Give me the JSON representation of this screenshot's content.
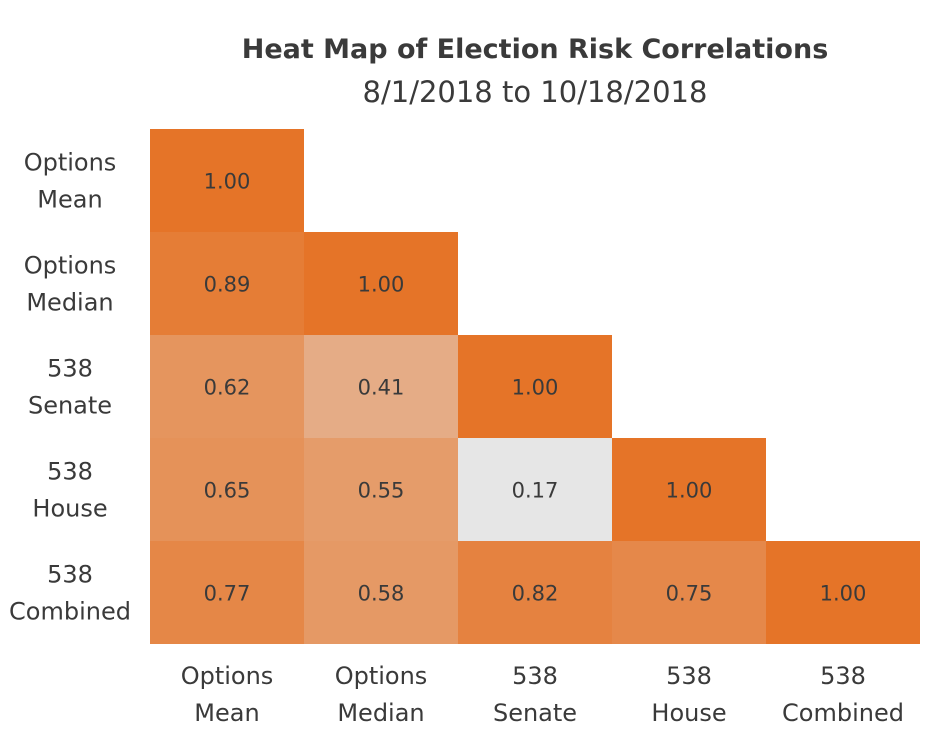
{
  "chart_data": {
    "type": "heatmap",
    "title": "Heat Map of Election Risk Correlations",
    "subtitle": "8/1/2018 to 10/18/2018",
    "x_categories": [
      {
        "line1": "Options",
        "line2": "Mean"
      },
      {
        "line1": "Options",
        "line2": "Median"
      },
      {
        "line1": "538",
        "line2": "Senate"
      },
      {
        "line1": "538",
        "line2": "House"
      },
      {
        "line1": "538",
        "line2": "Combined"
      }
    ],
    "y_categories": [
      {
        "line1": "Options",
        "line2": "Mean"
      },
      {
        "line1": "Options",
        "line2": "Median"
      },
      {
        "line1": "538",
        "line2": "Senate"
      },
      {
        "line1": "538",
        "line2": "House"
      },
      {
        "line1": "538",
        "line2": "Combined"
      }
    ],
    "values": [
      [
        1.0,
        null,
        null,
        null,
        null
      ],
      [
        0.89,
        1.0,
        null,
        null,
        null
      ],
      [
        0.62,
        0.41,
        1.0,
        null,
        null
      ],
      [
        0.65,
        0.55,
        0.17,
        1.0,
        null
      ],
      [
        0.77,
        0.58,
        0.82,
        0.75,
        1.0
      ]
    ],
    "value_labels": [
      [
        "1.00",
        "",
        "",
        "",
        ""
      ],
      [
        "0.89",
        "1.00",
        "",
        "",
        ""
      ],
      [
        "0.62",
        "0.41",
        "1.00",
        "",
        ""
      ],
      [
        "0.65",
        "0.55",
        "0.17",
        "1.00",
        ""
      ],
      [
        "0.77",
        "0.58",
        "0.82",
        "0.75",
        "1.00"
      ]
    ],
    "color_scale": {
      "low": "#e6e6e6",
      "high": "#e57428",
      "min": 0.17,
      "max": 1.0
    }
  }
}
